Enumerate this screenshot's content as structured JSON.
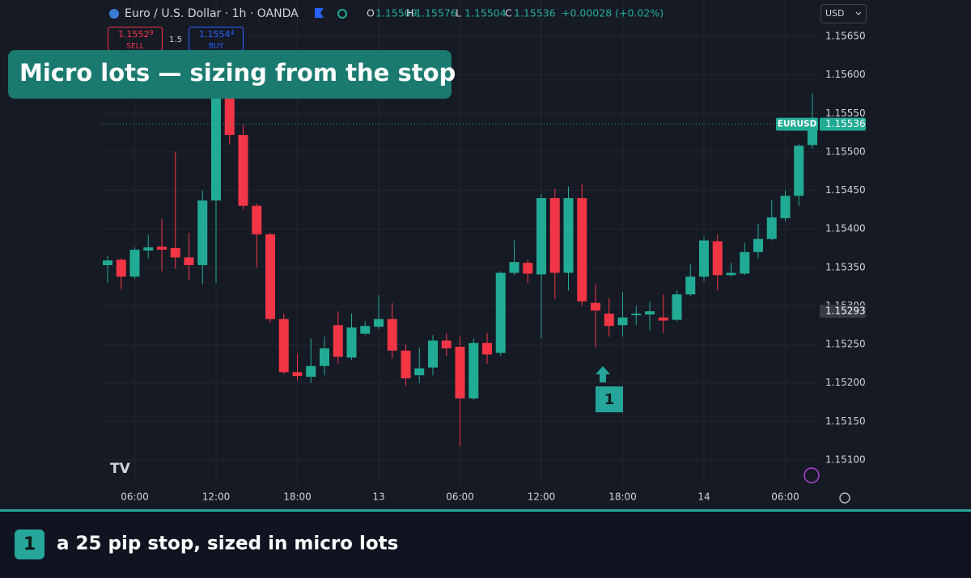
{
  "header": {
    "symbol": "Euro / U.S. Dollar · 1h · OANDA",
    "ohlc": [
      {
        "key": "O",
        "value": 1.15509
      },
      {
        "key": "H",
        "value": 1.15576
      },
      {
        "key": "L",
        "value": 1.15504
      },
      {
        "key": "C",
        "value": 1.15536
      }
    ],
    "change": "+0.00028 (+0.02%)"
  },
  "trade": {
    "sell_price": "1.1552",
    "sell_pip": "9",
    "sell_label": "SELL",
    "spread": "1.5",
    "buy_price": "1.1554",
    "buy_pip": "4",
    "buy_label": "BUY"
  },
  "currency": "USD",
  "overlay_title": "Micro lots  —  sizing from the stop",
  "marker": "1",
  "caption": {
    "badge": "1",
    "text": "a 25 pip stop, sized in micro lots"
  },
  "chart_data": {
    "type": "candlestick",
    "up_color": "#22ab94",
    "down_color": "#f23645",
    "grid": true,
    "categories": [
      null,
      null,
      "06:00",
      null,
      null,
      null,
      null,
      null,
      "12:00",
      null,
      null,
      null,
      null,
      null,
      "18:00",
      null,
      null,
      null,
      null,
      null,
      "13",
      null,
      null,
      null,
      null,
      null,
      "06:00",
      null,
      null,
      null,
      null,
      null,
      "12:00",
      null,
      null,
      null,
      null,
      null,
      "18:00",
      null,
      null,
      null,
      null,
      null,
      "14",
      null,
      null,
      null,
      null,
      null,
      "06:00",
      null,
      null
    ],
    "open": [
      1.15353,
      1.1536,
      1.15338,
      1.15372,
      1.15377,
      1.15375,
      1.15363,
      1.15353,
      1.15437,
      1.1564,
      1.15522,
      1.1543,
      1.15393,
      1.15283,
      1.15214,
      1.15208,
      1.15222,
      1.15275,
      1.15233,
      1.15264,
      1.15273,
      1.15283,
      1.15242,
      1.1521,
      1.1522,
      1.15255,
      1.15247,
      1.1518,
      1.15252,
      1.15239,
      1.15343,
      1.15356,
      1.15341,
      1.1544,
      1.15343,
      1.1544,
      1.15304,
      1.1529,
      1.15275,
      1.15288,
      1.15289,
      1.15285,
      1.15282,
      1.15315,
      1.15338,
      1.15384,
      1.1534,
      1.15342,
      1.1537,
      1.15387,
      1.15414,
      1.15443,
      1.15509
    ],
    "high": [
      1.15365,
      1.15362,
      1.15376,
      1.15392,
      1.15413,
      1.155,
      1.15395,
      1.1545,
      1.15655,
      1.1565,
      1.15535,
      1.15433,
      1.15395,
      1.1529,
      1.15238,
      1.15258,
      1.1526,
      1.15293,
      1.1529,
      1.1528,
      1.15314,
      1.15304,
      1.1525,
      1.15246,
      1.15262,
      1.15265,
      1.1526,
      1.15258,
      1.15265,
      1.15345,
      1.15385,
      1.1536,
      1.15445,
      1.15452,
      1.15455,
      1.15458,
      1.15328,
      1.1531,
      1.15318,
      1.153,
      1.15305,
      1.15315,
      1.1532,
      1.15355,
      1.1539,
      1.15393,
      1.15356,
      1.15382,
      1.15407,
      1.15438,
      1.1545,
      1.1551,
      1.15576
    ],
    "low": [
      1.1533,
      1.15322,
      1.15335,
      1.15362,
      1.15345,
      1.15348,
      1.15333,
      1.15328,
      1.1533,
      1.1551,
      1.15425,
      1.1535,
      1.15278,
      1.15212,
      1.15203,
      1.152,
      1.1521,
      1.15225,
      1.1523,
      1.15262,
      1.1527,
      1.15232,
      1.15196,
      1.152,
      1.1521,
      1.15235,
      1.15118,
      1.15178,
      1.15225,
      1.15235,
      1.1534,
      1.1533,
      1.15258,
      1.15309,
      1.1532,
      1.153,
      1.15246,
      1.1526,
      1.1526,
      1.15275,
      1.15268,
      1.15265,
      1.1528,
      1.15313,
      1.15332,
      1.1532,
      1.15338,
      1.1534,
      1.15362,
      1.15385,
      1.1541,
      1.1543,
      1.15504
    ],
    "close": [
      1.15359,
      1.15338,
      1.15373,
      1.15376,
      1.15373,
      1.15363,
      1.15353,
      1.15437,
      1.1564,
      1.15522,
      1.1543,
      1.15393,
      1.15283,
      1.15214,
      1.15209,
      1.15222,
      1.15245,
      1.15234,
      1.15272,
      1.15274,
      1.15283,
      1.15242,
      1.15206,
      1.15219,
      1.15255,
      1.15245,
      1.1518,
      1.15252,
      1.15237,
      1.15343,
      1.15357,
      1.15342,
      1.1544,
      1.15343,
      1.1544,
      1.15306,
      1.15294,
      1.15274,
      1.15285,
      1.1529,
      1.15293,
      1.15281,
      1.15315,
      1.15338,
      1.15385,
      1.1534,
      1.15343,
      1.1537,
      1.15387,
      1.15415,
      1.15443,
      1.15508,
      1.15536
    ],
    "ylim": [
      1.1506,
      1.1569
    ],
    "yticks": [
      {
        "value": 1.1565,
        "label": "1.15650"
      },
      {
        "value": 1.156,
        "label": "1.15600"
      },
      {
        "value": 1.1555,
        "label": "1.15550"
      },
      {
        "value": 1.155,
        "label": "1.15500"
      },
      {
        "value": 1.1545,
        "label": "1.15450"
      },
      {
        "value": 1.154,
        "label": "1.15400"
      },
      {
        "value": 1.1535,
        "label": "1.15350"
      },
      {
        "value": 1.153,
        "label": "1.15300"
      },
      {
        "value": 1.1525,
        "label": "1.15250"
      },
      {
        "value": 1.152,
        "label": "1.15200"
      },
      {
        "value": 1.1515,
        "label": "1.15150"
      },
      {
        "value": 1.151,
        "label": "1.15100"
      }
    ],
    "last_price": {
      "symbol": "EURUSD",
      "value": 1.15536
    },
    "marked_price": 1.15293
  }
}
